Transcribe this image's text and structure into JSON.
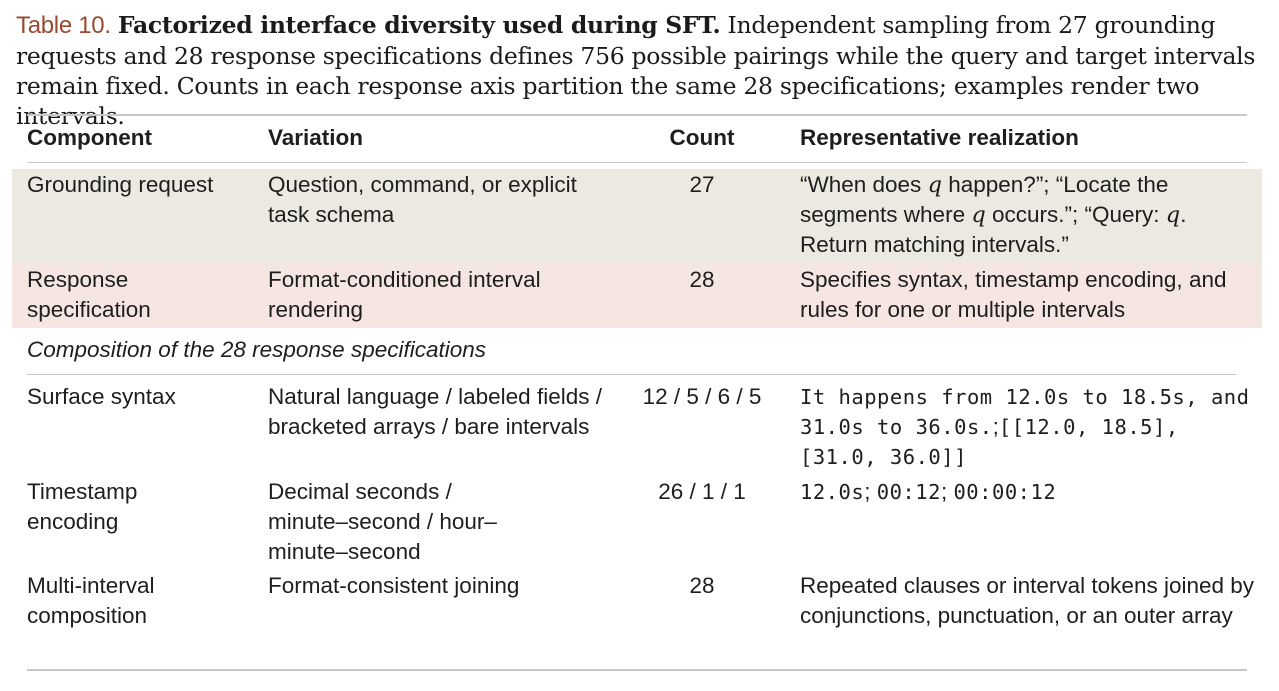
{
  "caption": {
    "label": "Table 10.",
    "title": "Factorized interface diversity used during SFT.",
    "text": "Independent sampling from 27 grounding requests and 28 response specifications defines 756 possible pairings while the query and target intervals remain fixed. Counts in each response axis partition the same 28 specifications; examples render two intervals."
  },
  "table": {
    "headers": {
      "component": "Component",
      "variation": "Variation",
      "count": "Count",
      "realization": "Representative realization"
    },
    "rows": [
      {
        "component": "Grounding request",
        "variation": "Question, command, or explicit task schema",
        "count": "27",
        "realization": {
          "p1": "“When does ",
          "q1": "q",
          "p2": " happen?”; “Locate the segments where ",
          "q2": "q",
          "p3": " occurs.”; “Query: ",
          "q3": "q",
          "p4": ". Return matching intervals.”"
        }
      },
      {
        "component": "Response specification",
        "variation": "Format-conditioned interval rendering",
        "count": "28",
        "realization": "Specifies syntax, timestamp encoding, and rules for one or multiple intervals"
      }
    ],
    "subheading": "Composition of the 28 response specifications",
    "sub_rows": [
      {
        "component": "Surface syntax",
        "variation": "Natural language / labeled fields / bracketed arrays / bare intervals",
        "count": "12 / 5 / 6 / 5",
        "realization_mono1": "It happens from 12.0s to 18.5s, and 31.0s to 36.0s.",
        "sep1": ";",
        "realization_mono2": "[[12.0, 18.5], [31.0, 36.0]]"
      },
      {
        "component": "Timestamp encoding",
        "variation": "Decimal seconds / minute–second / hour–minute–second",
        "count": "26 / 1 / 1",
        "realization_mono1": "12.0s",
        "sep1": "; ",
        "realization_mono2": "00:12",
        "sep2": "; ",
        "realization_mono3": "00:00:12"
      },
      {
        "component": "Multi-interval composition",
        "variation": "Format-consistent joining",
        "count": "28",
        "realization": "Repeated clauses or interval tokens joined by conjunctions, punctuation, or an outer array"
      }
    ]
  }
}
